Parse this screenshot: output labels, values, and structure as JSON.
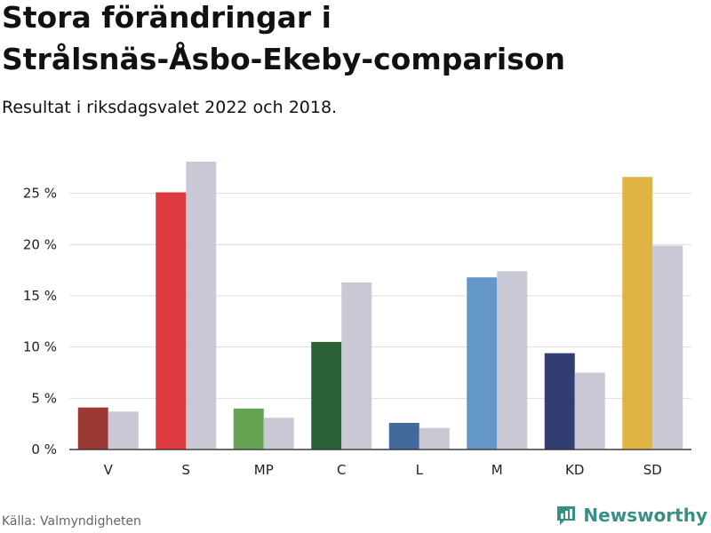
{
  "header": {
    "title_line1": "Stora förändringar i",
    "title_line2": "Strålsnäs-Åsbo-Ekeby-comparison",
    "subtitle": "Resultat i riksdagsvalet 2022 och 2018."
  },
  "footer": {
    "source": "Källa: Valmyndigheten",
    "brand": "Newsworthy",
    "brand_icon": "bar-chart-logo-icon",
    "brand_color": "#3a8f84"
  },
  "chart_data": {
    "type": "bar",
    "title": "Stora förändringar i Strålsnäs-Åsbo-Ekeby-comparison",
    "subtitle": "Resultat i riksdagsvalet 2022 och 2018.",
    "xlabel": "",
    "ylabel": "",
    "ylim": [
      0,
      30
    ],
    "yticks": [
      0,
      5,
      10,
      15,
      20,
      25
    ],
    "ytick_labels": [
      "0 %",
      "5 %",
      "10 %",
      "15 %",
      "20 %",
      "25 %"
    ],
    "grid": true,
    "categories": [
      "V",
      "S",
      "MP",
      "C",
      "L",
      "M",
      "KD",
      "SD"
    ],
    "series": [
      {
        "name": "2022",
        "values": [
          4.1,
          25.1,
          4.0,
          10.5,
          2.6,
          16.8,
          9.4,
          26.6
        ],
        "colors": [
          "#9b3a35",
          "#dc3a40",
          "#65a353",
          "#2a6137",
          "#43689c",
          "#6297c7",
          "#323e71",
          "#dfb444"
        ]
      },
      {
        "name": "2018",
        "values": [
          3.7,
          28.1,
          3.1,
          16.3,
          2.1,
          17.4,
          7.5,
          19.9
        ],
        "color": "#c9c9d6"
      }
    ]
  }
}
